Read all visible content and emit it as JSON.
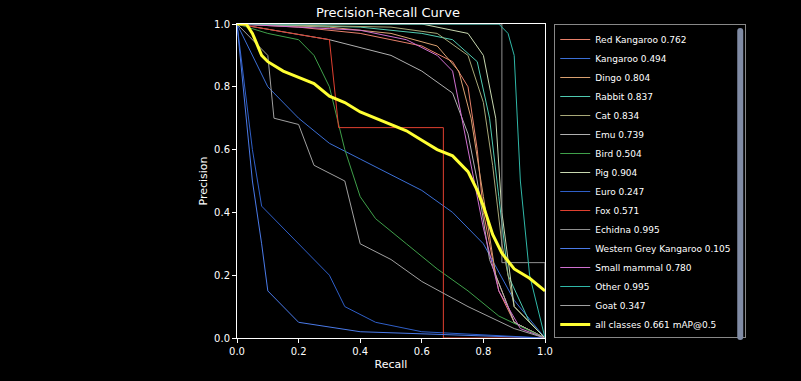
{
  "chart_data": {
    "type": "line",
    "title": "Precision-Recall Curve",
    "x_label": "Recall",
    "y_label": "Precision",
    "xlim": [
      0,
      1
    ],
    "ylim": [
      0,
      1
    ],
    "xticks": [
      {
        "value": 0,
        "label": "0.0"
      },
      {
        "value": 0.2,
        "label": "0.2"
      },
      {
        "value": 0.4,
        "label": "0.4"
      },
      {
        "value": 0.6,
        "label": "0.6"
      },
      {
        "value": 0.8,
        "label": "0.8"
      },
      {
        "value": 1,
        "label": "1.0"
      }
    ],
    "yticks": [
      {
        "value": 0,
        "label": "0.0"
      },
      {
        "value": 0.2,
        "label": "0.2"
      },
      {
        "value": 0.4,
        "label": "0.4"
      },
      {
        "value": 0.6,
        "label": "0.6"
      },
      {
        "value": 0.8,
        "label": "0.8"
      },
      {
        "value": 1,
        "label": "1.0"
      }
    ],
    "grid": false,
    "legend": "right",
    "series": [
      {
        "name": "Red Kangaroo 0.762",
        "color": "#e8806a",
        "x": [
          0,
          0.2,
          0.4,
          0.6,
          0.7,
          0.75,
          0.78,
          0.8,
          0.85,
          0.9,
          1
        ],
        "values": [
          1,
          0.99,
          0.97,
          0.93,
          0.88,
          0.8,
          0.6,
          0.4,
          0.15,
          0.05,
          0
        ]
      },
      {
        "name": "Kangaroo 0.494",
        "color": "#3b6fd6",
        "x": [
          0,
          0.05,
          0.1,
          0.2,
          0.3,
          0.4,
          0.5,
          0.6,
          0.7,
          0.8,
          0.9,
          1
        ],
        "values": [
          1,
          0.9,
          0.8,
          0.7,
          0.62,
          0.57,
          0.52,
          0.47,
          0.4,
          0.3,
          0.12,
          0
        ]
      },
      {
        "name": "Dingo 0.804",
        "color": "#d9a070",
        "x": [
          0,
          0.3,
          0.5,
          0.65,
          0.72,
          0.76,
          0.8,
          0.84,
          0.9,
          1
        ],
        "values": [
          1,
          0.99,
          0.97,
          0.93,
          0.85,
          0.7,
          0.45,
          0.2,
          0.05,
          0
        ]
      },
      {
        "name": "Rabbit 0.837",
        "color": "#4fc9b0",
        "x": [
          0,
          0.4,
          0.6,
          0.7,
          0.78,
          0.82,
          0.85,
          0.88,
          0.95,
          1
        ],
        "values": [
          1,
          0.99,
          0.97,
          0.95,
          0.88,
          0.7,
          0.45,
          0.2,
          0.05,
          0
        ]
      },
      {
        "name": "Cat 0.834",
        "color": "#a8a878",
        "x": [
          0,
          0.5,
          0.65,
          0.75,
          0.8,
          0.83,
          0.86,
          0.9,
          1
        ],
        "values": [
          1,
          0.99,
          0.97,
          0.9,
          0.75,
          0.55,
          0.3,
          0.1,
          0
        ]
      },
      {
        "name": "Emu 0.739",
        "color": "#b0b0b0",
        "x": [
          0,
          0.3,
          0.5,
          0.6,
          0.7,
          0.75,
          0.78,
          0.82,
          0.9,
          1
        ],
        "values": [
          1,
          0.95,
          0.9,
          0.85,
          0.78,
          0.65,
          0.5,
          0.25,
          0.05,
          0
        ]
      },
      {
        "name": "Bird 0.504",
        "color": "#3fa04a",
        "x": [
          0,
          0.1,
          0.2,
          0.25,
          0.3,
          0.35,
          0.4,
          0.45,
          0.55,
          0.65,
          0.75,
          0.85,
          1
        ],
        "values": [
          1,
          0.97,
          0.95,
          0.9,
          0.8,
          0.6,
          0.45,
          0.38,
          0.3,
          0.22,
          0.15,
          0.07,
          0
        ]
      },
      {
        "name": "Pig 0.904",
        "color": "#c8d8b0",
        "x": [
          0,
          0.6,
          0.75,
          0.8,
          0.84,
          0.86,
          0.9,
          1
        ],
        "values": [
          1,
          1,
          0.97,
          0.9,
          0.7,
          0.4,
          0.1,
          0
        ]
      },
      {
        "name": "Euro 0.247",
        "color": "#2f5fc8",
        "x": [
          0,
          0.05,
          0.08,
          0.15,
          0.2,
          0.3,
          0.35,
          0.45,
          0.6,
          1
        ],
        "values": [
          1,
          0.6,
          0.42,
          0.35,
          0.3,
          0.2,
          0.1,
          0.05,
          0.02,
          0
        ]
      },
      {
        "name": "Fox 0.571",
        "color": "#e04030",
        "x": [
          0,
          0.3,
          0.33,
          0.5,
          0.67,
          0.67,
          1
        ],
        "values": [
          1,
          0.95,
          0.67,
          0.67,
          0.67,
          0,
          0
        ]
      },
      {
        "name": "Echidna 0.995",
        "color": "#909090",
        "x": [
          0,
          0.86,
          0.86,
          1,
          1
        ],
        "values": [
          1,
          1,
          0.24,
          0.24,
          0
        ]
      },
      {
        "name": "Western Grey Kangaroo 0.105",
        "color": "#4a7ae8",
        "x": [
          0,
          0.05,
          0.08,
          0.1,
          0.2,
          0.4,
          1
        ],
        "values": [
          1,
          0.5,
          0.3,
          0.15,
          0.05,
          0.02,
          0
        ]
      },
      {
        "name": "Small mammal 0.780",
        "color": "#d070d0",
        "x": [
          0,
          0.4,
          0.55,
          0.65,
          0.7,
          0.73,
          0.76,
          0.8,
          0.85,
          0.92,
          1
        ],
        "values": [
          1,
          0.98,
          0.95,
          0.9,
          0.85,
          0.7,
          0.55,
          0.35,
          0.15,
          0.03,
          0
        ]
      },
      {
        "name": "Other 0.995",
        "color": "#30b8a8",
        "x": [
          0,
          0.85,
          0.88,
          0.9,
          0.92,
          0.95,
          1
        ],
        "values": [
          1,
          1,
          0.97,
          0.9,
          0.5,
          0.2,
          0
        ]
      },
      {
        "name": "Goat 0.347",
        "color": "#a0a0a0",
        "x": [
          0,
          0.1,
          0.12,
          0.2,
          0.25,
          0.35,
          0.4,
          0.5,
          0.6,
          0.75,
          0.9,
          1
        ],
        "values": [
          1,
          0.9,
          0.7,
          0.68,
          0.55,
          0.5,
          0.3,
          0.25,
          0.18,
          0.1,
          0.03,
          0
        ]
      },
      {
        "name": "all classes 0.661 mAP@0.5",
        "color": "#ffff33",
        "line_style": "bold",
        "x": [
          0,
          0.03,
          0.05,
          0.08,
          0.1,
          0.15,
          0.2,
          0.25,
          0.3,
          0.35,
          0.4,
          0.45,
          0.5,
          0.55,
          0.6,
          0.65,
          0.7,
          0.75,
          0.78,
          0.8,
          0.83,
          0.86,
          0.9,
          0.95,
          1
        ],
        "values": [
          1,
          1,
          0.97,
          0.9,
          0.88,
          0.85,
          0.83,
          0.81,
          0.77,
          0.75,
          0.72,
          0.7,
          0.68,
          0.66,
          0.63,
          0.6,
          0.58,
          0.53,
          0.47,
          0.42,
          0.33,
          0.27,
          0.22,
          0.19,
          0.15
        ]
      }
    ]
  }
}
